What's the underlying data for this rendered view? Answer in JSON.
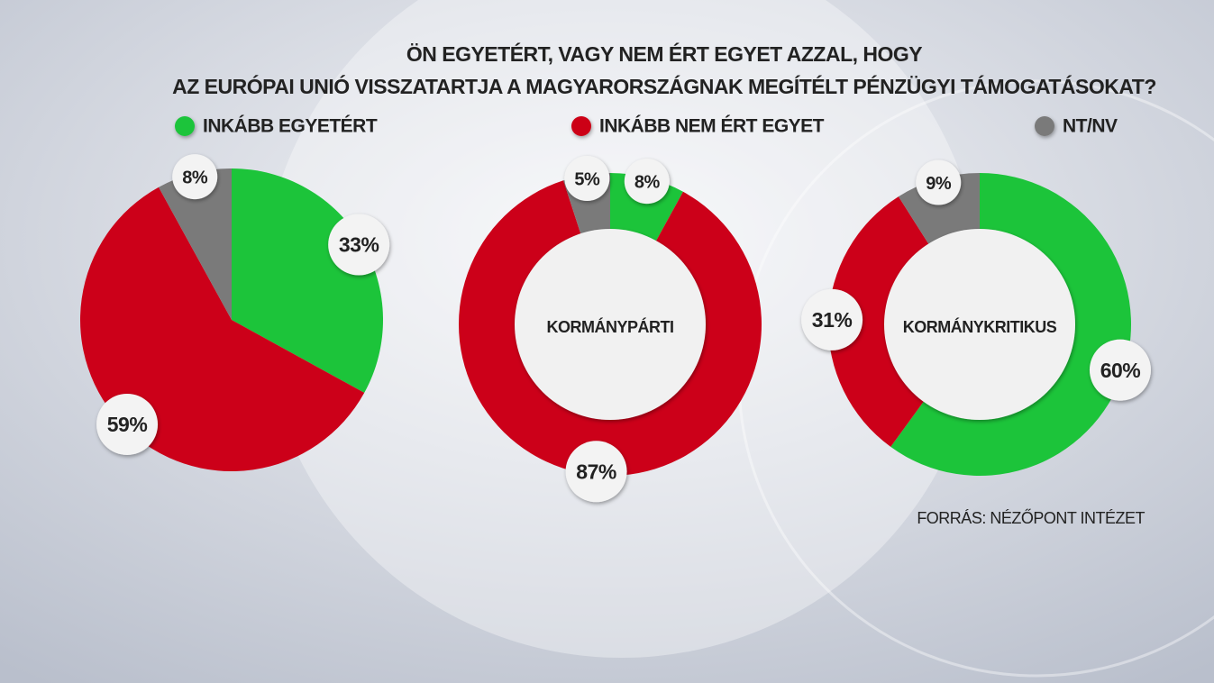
{
  "chart_data": {
    "type": "pie",
    "title": [
      "ÖN EGYETÉRT, VAGY NEM ÉRT EGYET AZZAL, HOGY",
      "AZ EURÓPAI UNIÓ VISSZATARTJA A MAGYARORSZÁGNAK MEGÍTÉLT PÉNZÜGYI TÁMOGATÁSOKAT?"
    ],
    "categories": [
      "INKÁBB EGYETÉRT",
      "INKÁBB NEM ÉRT EGYET",
      "NT/NV"
    ],
    "colors": [
      "#1cc43a",
      "#cc0019",
      "#7a7a7a"
    ],
    "series": [
      {
        "values": [
          33,
          59,
          8
        ],
        "value_labels": [
          "33%",
          "59%",
          "8%"
        ],
        "donut": false
      },
      {
        "name": "KORMÁNYPÁRTI",
        "values": [
          8,
          87,
          5
        ],
        "value_labels": [
          "8%",
          "87%",
          "5%"
        ],
        "donut": true
      },
      {
        "name": "KORMÁNYKRITIKUS",
        "values": [
          60,
          31,
          9
        ],
        "value_labels": [
          "60%",
          "31%",
          "9%"
        ],
        "donut": true
      }
    ],
    "source": "FORRÁS: NÉZŐPONT INTÉZET"
  }
}
